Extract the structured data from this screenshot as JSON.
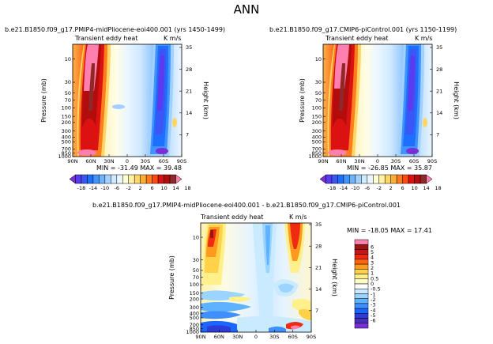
{
  "page_title": "ANN",
  "palette": {
    "top_colors": [
      "#7a2fd6",
      "#5a3bf0",
      "#3a56f5",
      "#1f6fff",
      "#3f94ff",
      "#6fb2ff",
      "#a3d1ff",
      "#cfe9ff",
      "#eaf6ff",
      "#ffffd6",
      "#fff2a6",
      "#ffd666",
      "#ffae34",
      "#ff7d1c",
      "#ff4a12",
      "#dc1212",
      "#b30c0c",
      "#8f2828",
      "#ff80ae"
    ],
    "top_ticks": [
      "-18",
      "-14",
      "-10",
      "-6",
      "-2",
      "2",
      "6",
      "10",
      "14",
      "18"
    ],
    "diff_colors": [
      "#7a2fd6",
      "#4a2fb8",
      "#2d3cd8",
      "#1a66ff",
      "#3f8fff",
      "#5fb2ff",
      "#9bd4ff",
      "#c9eaff",
      "#ffffff",
      "#ffffc8",
      "#fff08c",
      "#ffd24a",
      "#ff9a1e",
      "#ff6410",
      "#ee2a10",
      "#c81414",
      "#9a1414",
      "#ff7fae"
    ],
    "diff_ticks": [
      "6",
      "5",
      "4",
      "3",
      "2",
      "1",
      "0.5",
      "0",
      "-0.5",
      "-1",
      "-2",
      "-3",
      "-4",
      "-5",
      "-6"
    ]
  },
  "chart_data": [
    {
      "type": "heatmap",
      "title": "b.e21.B1850.f09_g17.PMIP4-midPliocene-eoi400.001 (yrs 1450-1499)",
      "subtitle_left": "Transient eddy heat",
      "subtitle_right": "K m/s",
      "xlabel": "",
      "ylabel": "Pressure (mb)",
      "ylabel_right": "Height (km)",
      "x_ticks": [
        "90N",
        "60N",
        "30N",
        "0",
        "30S",
        "60S",
        "90S"
      ],
      "y_ticks": [
        "10",
        "30",
        "50",
        "70",
        "100",
        "150",
        "200",
        "300",
        "400",
        "500",
        "700",
        "850",
        "1000"
      ],
      "height_ticks": [
        "35",
        "28",
        "21",
        "14",
        "7"
      ],
      "stats": "MIN = -31.49   MAX = 39.48",
      "min": -31.49,
      "max": 39.48
    },
    {
      "type": "heatmap",
      "title": "b.e21.B1850.f09_g17.CMIP6-piControl.001 (yrs 1150-1199)",
      "subtitle_left": "Transient eddy heat",
      "subtitle_right": "K m/s",
      "xlabel": "",
      "ylabel": "Pressure (mb)",
      "ylabel_right": "Height (km)",
      "x_ticks": [
        "90N",
        "60N",
        "30N",
        "0",
        "30S",
        "60S",
        "90S"
      ],
      "y_ticks": [
        "10",
        "30",
        "50",
        "70",
        "100",
        "150",
        "200",
        "300",
        "400",
        "500",
        "700",
        "850",
        "1000"
      ],
      "height_ticks": [
        "35",
        "28",
        "21",
        "14",
        "7"
      ],
      "stats": "MIN = -26.85   MAX = 35.87",
      "min": -26.85,
      "max": 35.87
    },
    {
      "type": "heatmap",
      "title": "b.e21.B1850.f09_g17.PMIP4-midPliocene-eoi400.001 - b.e21.B1850.f09_g17.CMIP6-piControl.001",
      "subtitle_left": "Transient eddy heat",
      "subtitle_right": "K m/s",
      "xlabel": "",
      "ylabel": "Pressure (mb)",
      "ylabel_right": "Height (km)",
      "x_ticks": [
        "90N",
        "60N",
        "30N",
        "0",
        "30S",
        "60S",
        "90S"
      ],
      "y_ticks": [
        "10",
        "30",
        "50",
        "70",
        "100",
        "150",
        "200",
        "300",
        "400",
        "500",
        "700",
        "850",
        "1000"
      ],
      "height_ticks": [
        "35",
        "28",
        "21",
        "14",
        "7"
      ],
      "stats": "MIN = -18.05   MAX = 17.41",
      "min": -18.05,
      "max": 17.41
    }
  ]
}
